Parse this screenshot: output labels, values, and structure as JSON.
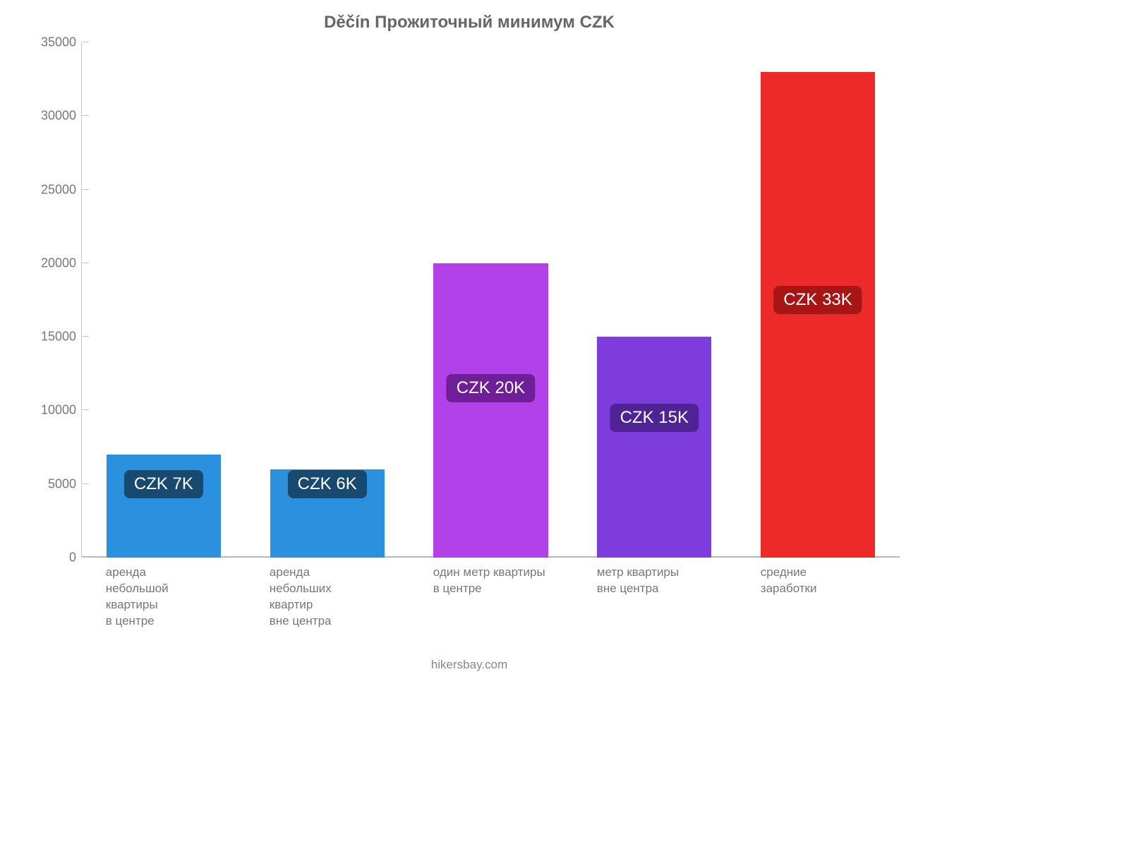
{
  "chart": {
    "type": "bar",
    "title": "Děčín Прожиточный минимум CZK",
    "title_fontsize": 24,
    "title_color": "#666666",
    "background_color": "#ffffff",
    "axis_color": "#c8c8c8",
    "baseline_color": "#b8b8b8",
    "label_fontsize": 17,
    "label_color": "#777777",
    "badge_fontsize": 24,
    "badge_text_color": "#ffffff",
    "ylim": [
      0,
      35000
    ],
    "ytick_step": 5000,
    "yticks": [
      0,
      5000,
      10000,
      15000,
      20000,
      25000,
      30000,
      35000
    ],
    "bar_width_pct": 14,
    "bar_gap_pct": 6,
    "first_bar_left_pct": 3,
    "footer": "hikersbay.com",
    "bars": [
      {
        "label": "аренда\nнебольшой\nквартиры\nв центре",
        "value": 7000,
        "color": "#2b90de",
        "badge_text": "CZK 7K",
        "badge_color": "#174a6e",
        "badge_y": 5000
      },
      {
        "label": "аренда\nнебольших\nквартир\nвне центра",
        "value": 6000,
        "color": "#2b90de",
        "badge_text": "CZK 6K",
        "badge_color": "#174a6e",
        "badge_y": 5000
      },
      {
        "label": "один метр квартиры\nв центре",
        "value": 20000,
        "color": "#b241ea",
        "badge_text": "CZK 20K",
        "badge_color": "#6e1f97",
        "badge_y": 11500
      },
      {
        "label": "метр квартиры\nвне центра",
        "value": 15000,
        "color": "#7e3cdf",
        "badge_text": "CZK 15K",
        "badge_color": "#4f2396",
        "badge_y": 9500
      },
      {
        "label": "средние\nзаработки",
        "value": 33000,
        "color": "#ed2a2a",
        "badge_text": "CZK 33K",
        "badge_color": "#a71515",
        "badge_y": 17500
      }
    ]
  }
}
